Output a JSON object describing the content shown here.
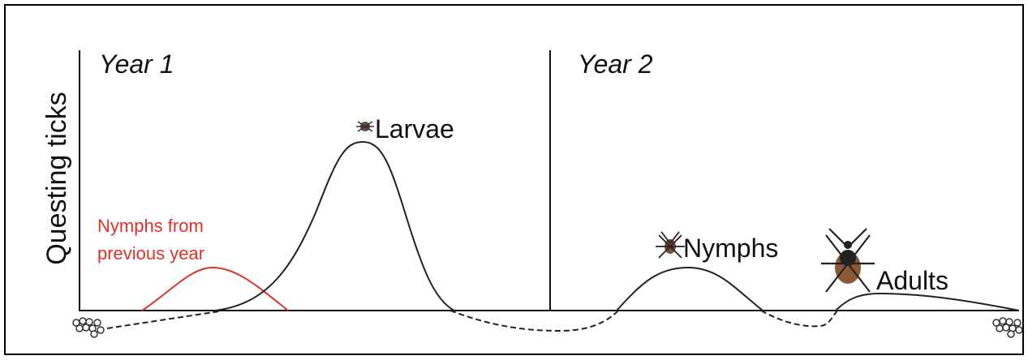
{
  "y_axis_label": "Questing ticks",
  "periods": [
    {
      "label": "Year 1"
    },
    {
      "label": "Year 2"
    }
  ],
  "stages": [
    {
      "label": "Larvae"
    },
    {
      "label": "Nymphs"
    },
    {
      "label": "Adults"
    }
  ],
  "note": {
    "lines": [
      "Nymphs from",
      "previous year"
    ]
  }
}
